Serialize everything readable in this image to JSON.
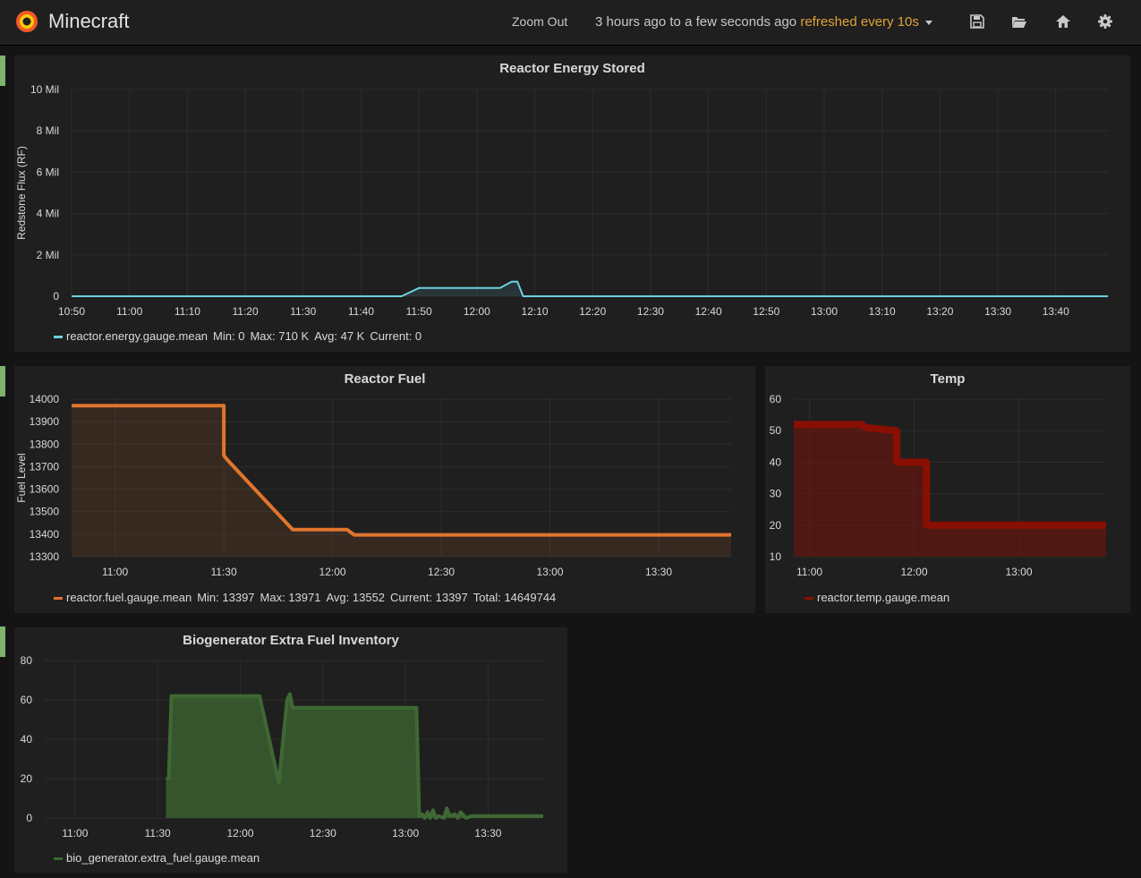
{
  "header": {
    "title": "Minecraft",
    "zoom_out": "Zoom Out",
    "time_range": "3 hours ago to a few seconds ago",
    "refresh": "refreshed every 10s",
    "icons": [
      "save-icon",
      "folder-open-icon",
      "home-icon",
      "gear-icon"
    ]
  },
  "colors": {
    "energy": "#6ed0e0",
    "fuel": "#e0752d",
    "temp": "#890f02",
    "bio": "#3f6833",
    "row_marker": "#7eb26d"
  },
  "panels": {
    "energy": {
      "title": "Reactor Energy Stored",
      "ylabel": "Redstone Flux (RF)",
      "legend": {
        "name": "reactor.energy.gauge.mean",
        "min": "Min: 0",
        "max": "Max: 710 K",
        "avg": "Avg: 47 K",
        "current": "Current: 0"
      }
    },
    "fuel": {
      "title": "Reactor Fuel",
      "ylabel": "Fuel Level",
      "legend": {
        "name": "reactor.fuel.gauge.mean",
        "min": "Min: 13397",
        "max": "Max: 13971",
        "avg": "Avg: 13552",
        "current": "Current: 13397",
        "total": "Total: 14649744"
      }
    },
    "temp": {
      "title": "Temp",
      "legend": {
        "name": "reactor.temp.gauge.mean"
      }
    },
    "bio": {
      "title": "Biogenerator Extra Fuel Inventory",
      "legend": {
        "name": "bio_generator.extra_fuel.gauge.mean"
      }
    }
  },
  "chart_data": [
    {
      "type": "area",
      "title": "Reactor Energy Stored",
      "ylabel": "Redstone Flux (RF)",
      "xlim": [
        "10:50",
        "13:49"
      ],
      "ylim": [
        0,
        10000000
      ],
      "yticks": [
        0,
        2000000,
        4000000,
        6000000,
        8000000,
        10000000
      ],
      "ytick_labels": [
        "0",
        "2 Mil",
        "4 Mil",
        "6 Mil",
        "8 Mil",
        "10 Mil"
      ],
      "xtick_labels": [
        "10:50",
        "11:00",
        "11:10",
        "11:20",
        "11:30",
        "11:40",
        "11:50",
        "12:00",
        "12:10",
        "12:20",
        "12:30",
        "12:40",
        "12:50",
        "13:00",
        "13:10",
        "13:20",
        "13:30",
        "13:40"
      ],
      "grid": true,
      "legend_position": "bottom",
      "series": [
        {
          "name": "reactor.energy.gauge.mean",
          "x": [
            "10:50",
            "11:47",
            "11:50",
            "12:04",
            "12:06",
            "12:07",
            "12:08",
            "13:49"
          ],
          "y": [
            0,
            0,
            400000,
            400000,
            700000,
            710000,
            0,
            0
          ]
        }
      ]
    },
    {
      "type": "area",
      "title": "Reactor Fuel",
      "ylabel": "Fuel Level",
      "xlim": [
        "10:48",
        "13:50"
      ],
      "ylim": [
        13300,
        14000
      ],
      "yticks": [
        13300,
        13400,
        13500,
        13600,
        13700,
        13800,
        13900,
        14000
      ],
      "xtick_labels": [
        "11:00",
        "11:30",
        "12:00",
        "12:30",
        "13:00",
        "13:30"
      ],
      "grid": true,
      "legend_position": "bottom",
      "series": [
        {
          "name": "reactor.fuel.gauge.mean",
          "x": [
            "10:48",
            "11:30",
            "11:30",
            "11:31",
            "11:49",
            "12:04",
            "12:06",
            "13:50"
          ],
          "y": [
            13971,
            13971,
            13750,
            13730,
            13420,
            13420,
            13397,
            13397
          ]
        }
      ]
    },
    {
      "type": "area",
      "title": "Temp",
      "xlim": [
        "10:51",
        "13:50"
      ],
      "ylim": [
        10,
        60
      ],
      "yticks": [
        10,
        20,
        30,
        40,
        50,
        60
      ],
      "xtick_labels": [
        "11:00",
        "12:00",
        "13:00"
      ],
      "grid": true,
      "legend_position": "bottom",
      "series": [
        {
          "name": "reactor.temp.gauge.mean",
          "x": [
            "10:51",
            "11:30",
            "11:32",
            "11:50",
            "11:50",
            "12:07",
            "12:07",
            "13:50"
          ],
          "y": [
            52,
            52,
            51,
            50,
            40,
            40,
            20,
            20
          ]
        }
      ]
    },
    {
      "type": "area",
      "title": "Biogenerator Extra Fuel Inventory",
      "xlim": [
        "10:49",
        "13:50"
      ],
      "ylim": [
        0,
        80
      ],
      "yticks": [
        0,
        20,
        40,
        60,
        80
      ],
      "xtick_labels": [
        "11:00",
        "11:30",
        "12:00",
        "12:30",
        "13:00",
        "13:30"
      ],
      "grid": true,
      "legend_position": "bottom",
      "series": [
        {
          "name": "bio_generator.extra_fuel.gauge.mean",
          "x": [
            "11:33",
            "11:34",
            "11:35",
            "12:07",
            "12:14",
            "12:17",
            "12:18",
            "12:19",
            "13:04",
            "13:05",
            "13:06",
            "13:07",
            "13:08",
            "13:09",
            "13:10",
            "13:11",
            "13:12",
            "13:14",
            "13:15",
            "13:16",
            "13:18",
            "13:19",
            "13:20",
            "13:22",
            "13:24",
            "13:50"
          ],
          "y": [
            20,
            20,
            62,
            62,
            18,
            60,
            63,
            56,
            56,
            1,
            2,
            0,
            3,
            0,
            4,
            0,
            1,
            0,
            5,
            1,
            2,
            0,
            3,
            0,
            1,
            1
          ]
        }
      ]
    }
  ]
}
